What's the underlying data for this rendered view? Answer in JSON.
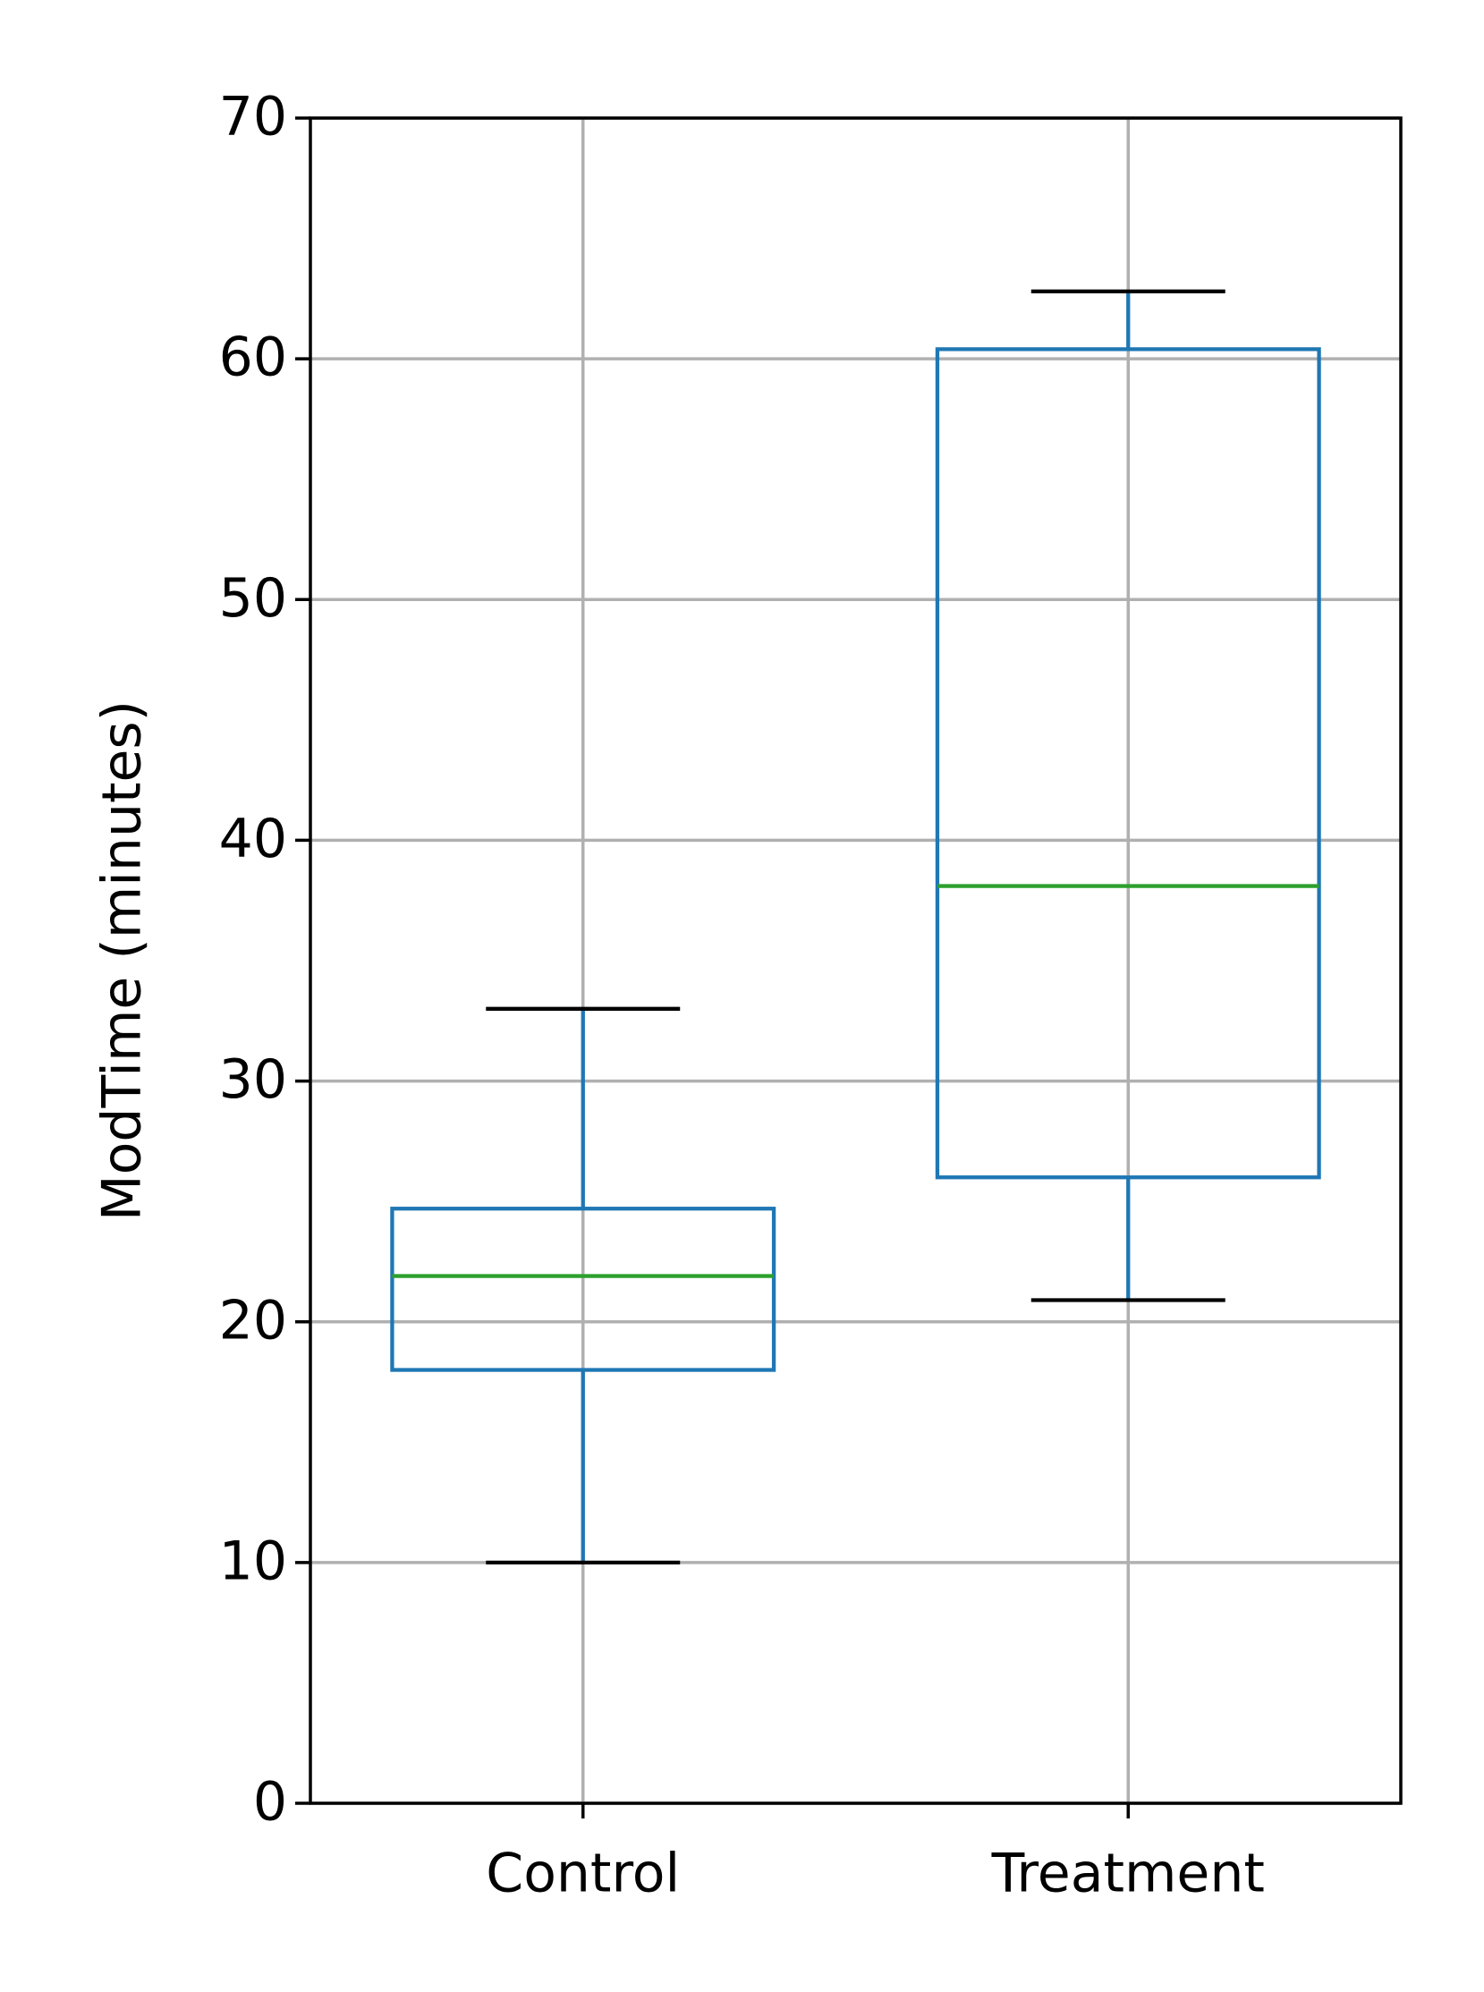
{
  "chart_data": {
    "type": "box",
    "ylabel": "ModTime (minutes)",
    "categories": [
      "Control",
      "Treatment"
    ],
    "boxes": [
      {
        "whislo": 10,
        "q1": 18,
        "med": 21.9,
        "q3": 24.7,
        "whishi": 33
      },
      {
        "whislo": 20.9,
        "q1": 26,
        "med": 38.1,
        "q3": 60.4,
        "whishi": 62.8
      }
    ],
    "box_color": "#1f77b4",
    "median_color": "#2ca02c",
    "cap_color": "#000000",
    "ylim": [
      0,
      70
    ],
    "yticks": [
      0,
      10,
      20,
      30,
      40,
      50,
      60,
      70
    ],
    "grid": true
  }
}
